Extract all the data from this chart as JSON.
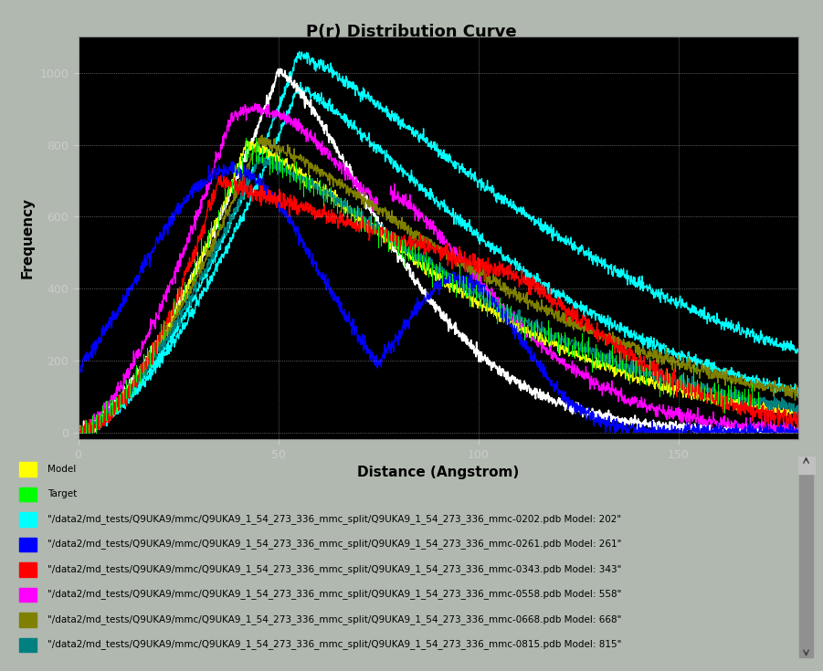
{
  "title": "P(r) Distribution Curve",
  "xlabel": "Distance (Angstrom)",
  "ylabel": "Frequency",
  "xlim": [
    0,
    180
  ],
  "ylim": [
    -20,
    1100
  ],
  "fig_bg": "#b0b8b0",
  "plot_bg": "#000000",
  "legend_bg": "#d0d0d0",
  "grid_color": "#ffffff",
  "legend_entries": [
    {
      "label": "Model",
      "color": "#ffff00"
    },
    {
      "label": "Target",
      "color": "#00ff00"
    },
    {
      "label": "\"/data2/md_tests/Q9UKA9/mmc/Q9UKA9_1_54_273_336_mmc_split/Q9UKA9_1_54_273_336_mmc-0202.pdb Model: 202\"",
      "color": "#00ffff"
    },
    {
      "label": "\"/data2/md_tests/Q9UKA9/mmc/Q9UKA9_1_54_273_336_mmc_split/Q9UKA9_1_54_273_336_mmc-0261.pdb Model: 261\"",
      "color": "#0000ff"
    },
    {
      "label": "\"/data2/md_tests/Q9UKA9/mmc/Q9UKA9_1_54_273_336_mmc_split/Q9UKA9_1_54_273_336_mmc-0343.pdb Model: 343\"",
      "color": "#ff0000"
    },
    {
      "label": "\"/data2/md_tests/Q9UKA9/mmc/Q9UKA9_1_54_273_336_mmc_split/Q9UKA9_1_54_273_336_mmc-0558.pdb Model: 558\"",
      "color": "#ff00ff"
    },
    {
      "label": "\"/data2/md_tests/Q9UKA9/mmc/Q9UKA9_1_54_273_336_mmc_split/Q9UKA9_1_54_273_336_mmc-0668.pdb Model: 668\"",
      "color": "#808000"
    },
    {
      "label": "\"/data2/md_tests/Q9UKA9/mmc/Q9UKA9_1_54_273_336_mmc_split/Q9UKA9_1_54_273_336_mmc-0815.pdb Model: 815\"",
      "color": "#008080"
    }
  ],
  "xticks": [
    0,
    50,
    100,
    150
  ],
  "yticks": [
    0,
    200,
    400,
    600,
    800,
    1000
  ]
}
